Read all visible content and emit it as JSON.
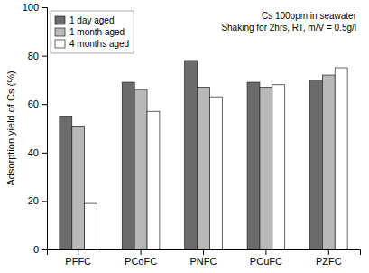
{
  "chart_data": {
    "type": "bar",
    "categories": [
      "PFFC",
      "PCoFC",
      "PNFC",
      "PCuFC",
      "PZFC"
    ],
    "series": [
      {
        "name": "1 day aged",
        "color": "#6b6b6b",
        "values": [
          55,
          69,
          78,
          69,
          70
        ]
      },
      {
        "name": "1 month aged",
        "color": "#b8b8b8",
        "values": [
          51,
          66,
          67,
          67,
          72
        ]
      },
      {
        "name": "4 months aged",
        "color": "#ffffff",
        "values": [
          19,
          57,
          63,
          68,
          75
        ]
      }
    ],
    "ylabel": "Adsorption yield of Cs (%)",
    "ylim": [
      0,
      100
    ],
    "yticks": [
      0,
      20,
      40,
      60,
      80,
      100
    ],
    "annotations": [
      "Cs 100ppm in seawater",
      "Shaking for 2hrs, RT, m/V = 0.5g/l"
    ],
    "legend": "upper left",
    "grid": false
  }
}
